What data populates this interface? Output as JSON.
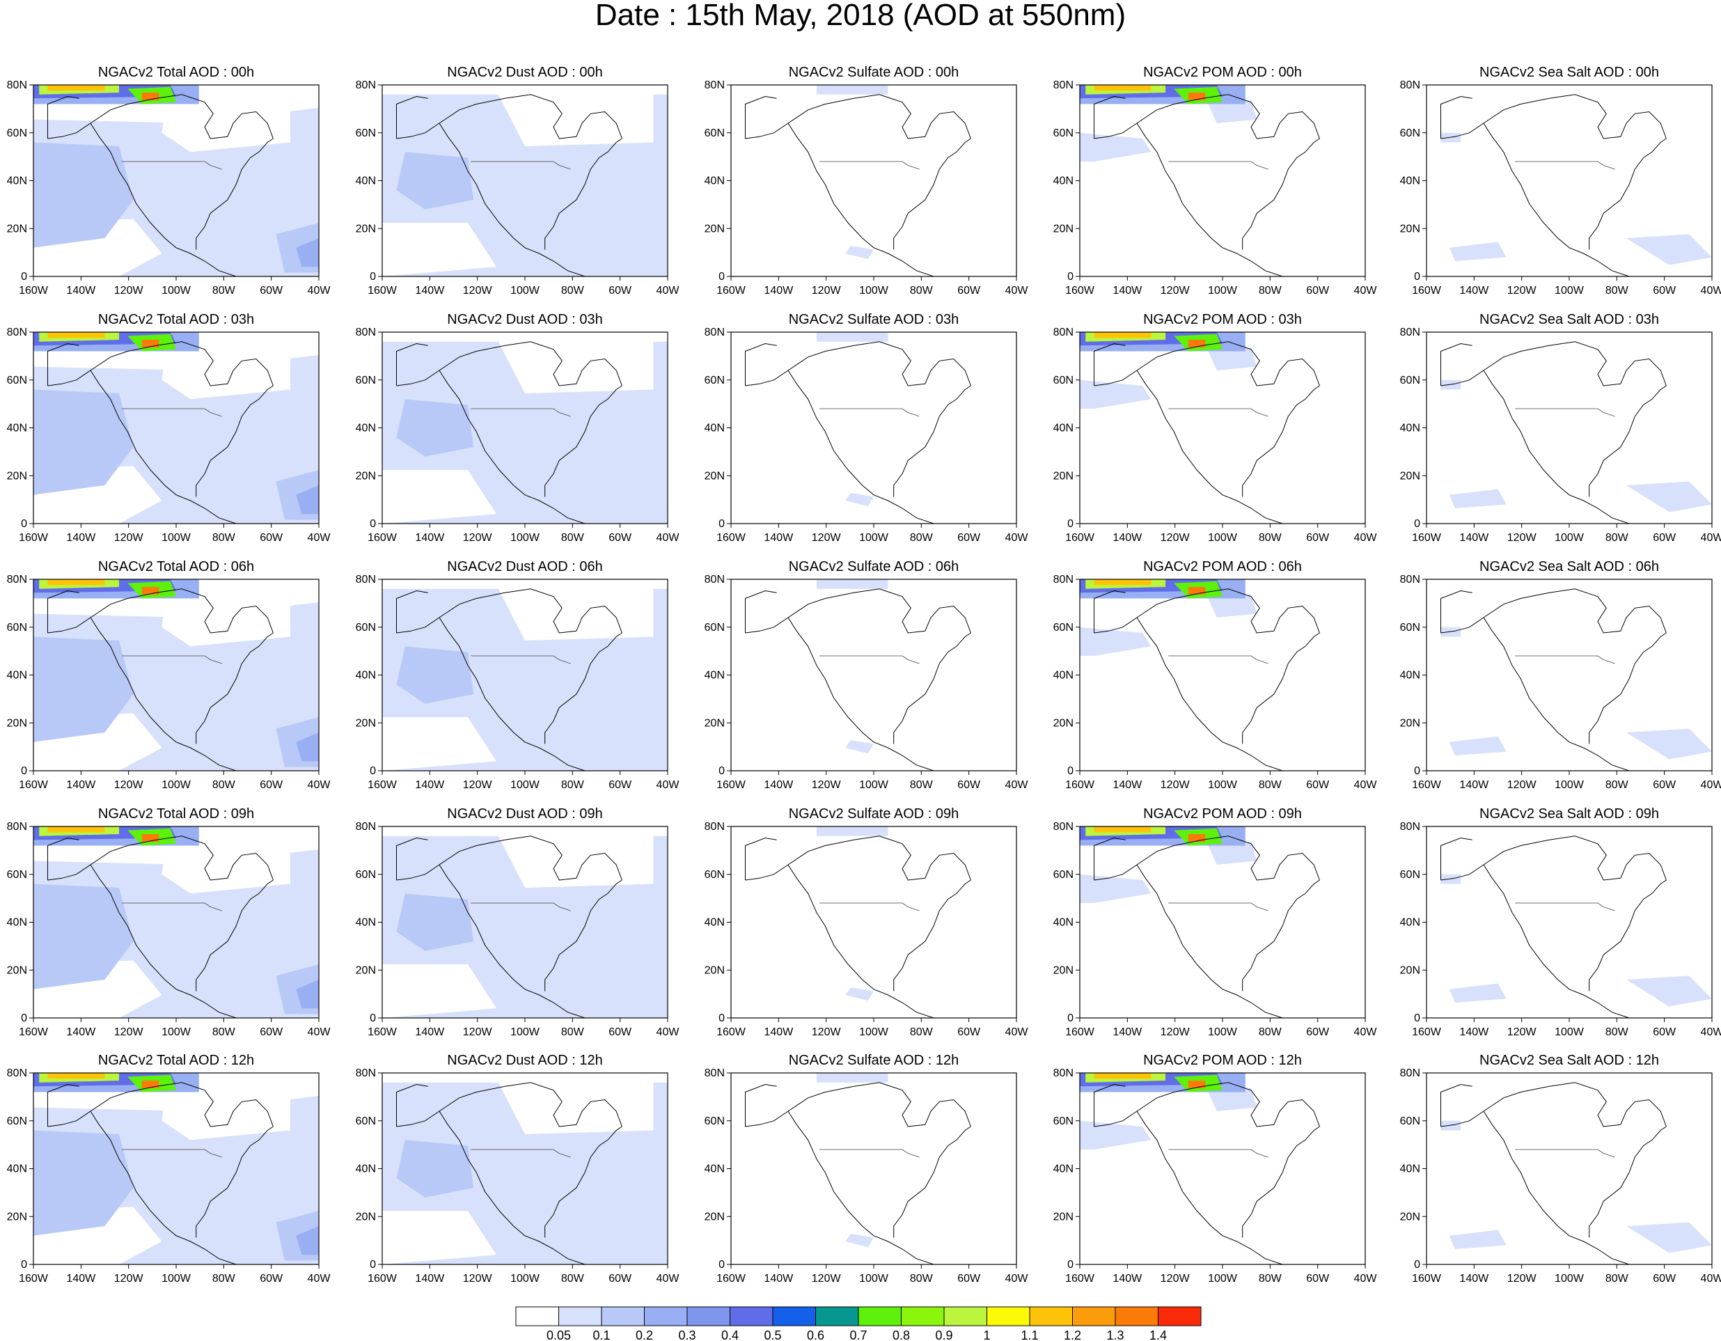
{
  "title": "Date : 15th May, 2018 (AOD at 550nm)",
  "grid": {
    "rows": [
      [
        "NGACv2 Total AOD : 00h",
        "NGACv2 Dust AOD : 00h",
        "NGACv2 Sulfate AOD : 00h",
        "NGACv2 POM AOD : 00h",
        "NGACv2 Sea Salt AOD : 00h"
      ],
      [
        "NGACv2 Total AOD : 03h",
        "NGACv2 Dust AOD : 03h",
        "NGACv2 Sulfate AOD : 03h",
        "NGACv2 POM AOD : 03h",
        "NGACv2 Sea Salt AOD : 03h"
      ],
      [
        "NGACv2 Total AOD : 06h",
        "NGACv2 Dust AOD : 06h",
        "NGACv2 Sulfate AOD : 06h",
        "NGACv2 POM AOD : 06h",
        "NGACv2 Sea Salt AOD : 06h"
      ],
      [
        "NGACv2 Total AOD : 09h",
        "NGACv2 Dust AOD : 09h",
        "NGACv2 Sulfate AOD : 09h",
        "NGACv2 POM AOD : 09h",
        "NGACv2 Sea Salt  AOD : 09h"
      ],
      [
        "NGACv2 Total AOD  : 12h",
        "NGACv2 Dust AOD : 12h",
        "NGACv2 Sulfate AOD : 12h",
        "NGACv2 POM  AOD : 12h",
        "NGACv2 Sea Salt  AOD : 12h"
      ]
    ],
    "column_types": [
      "total",
      "dust",
      "sulfate",
      "pom",
      "seasalt"
    ]
  },
  "axes": {
    "lat_labels": [
      "80N",
      "60N",
      "40N",
      "20N",
      "0"
    ],
    "lon_labels": [
      "160W",
      "140W",
      "120W",
      "100W",
      "80W",
      "60W",
      "40W"
    ]
  },
  "colorbar": {
    "colors": [
      "#ffffff",
      "#d7e1fb",
      "#b9c9f7",
      "#98b0f3",
      "#7e96ee",
      "#5f6ee8",
      "#1460ea",
      "#079791",
      "#5ef10b",
      "#8bf50b",
      "#bbf53e",
      "#fdfa08",
      "#fdc308",
      "#fb9c0b",
      "#fb7a0a",
      "#f92a08"
    ],
    "labels": [
      "0.05",
      "0.1",
      "0.2",
      "0.3",
      "0.4",
      "0.5",
      "0.6",
      "0.7",
      "0.8",
      "0.9",
      "1",
      "1.1",
      "1.2",
      "1.3",
      "1.4"
    ]
  }
}
